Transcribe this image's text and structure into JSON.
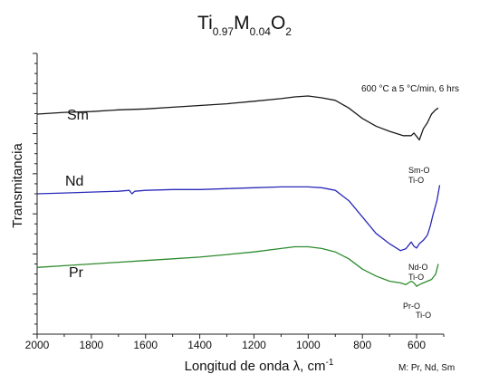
{
  "chart_data": {
    "type": "line",
    "title": {
      "parts": [
        {
          "text": "Ti",
          "sub": "0.97"
        },
        {
          "text": "M",
          "sub": "0.04"
        },
        {
          "text": "O",
          "sub": "2"
        }
      ]
    },
    "xlabel": "Longitud de onda λ, cm",
    "xlabel_sup": "-1",
    "ylabel": "Transmitancia",
    "xlim": [
      2000,
      500
    ],
    "x_reversed": true,
    "x_ticks": [
      2000,
      1800,
      1600,
      1400,
      1200,
      1000,
      800,
      600
    ],
    "y_ticks_unlabeled": true,
    "grid": false,
    "condition_note": "600 °C  a  5 °C/min, 6 hrs",
    "footnote": "M: Pr, Nd, Sm",
    "series": [
      {
        "name": "Sm",
        "color": "#1a1a1a",
        "points": [
          [
            2000,
            40
          ],
          [
            1900,
            38
          ],
          [
            1800,
            37
          ],
          [
            1700,
            35
          ],
          [
            1600,
            34
          ],
          [
            1500,
            32
          ],
          [
            1400,
            30
          ],
          [
            1300,
            28
          ],
          [
            1200,
            25
          ],
          [
            1100,
            22
          ],
          [
            1050,
            20
          ],
          [
            1000,
            19
          ],
          [
            950,
            21
          ],
          [
            900,
            24
          ],
          [
            850,
            33
          ],
          [
            800,
            45
          ],
          [
            750,
            54
          ],
          [
            700,
            60
          ],
          [
            650,
            65
          ],
          [
            620,
            65
          ],
          [
            610,
            62
          ],
          [
            600,
            66
          ],
          [
            590,
            70
          ],
          [
            575,
            57
          ],
          [
            560,
            50
          ],
          [
            545,
            40
          ],
          [
            530,
            35
          ],
          [
            520,
            33
          ]
        ]
      },
      {
        "name": "Nd",
        "color": "#2a2ab8",
        "points": [
          [
            2000,
            60
          ],
          [
            1900,
            59
          ],
          [
            1800,
            58
          ],
          [
            1700,
            57
          ],
          [
            1660,
            56
          ],
          [
            1650,
            60
          ],
          [
            1640,
            57
          ],
          [
            1600,
            56
          ],
          [
            1500,
            55
          ],
          [
            1400,
            55
          ],
          [
            1300,
            54
          ],
          [
            1200,
            53
          ],
          [
            1100,
            52
          ],
          [
            1000,
            52
          ],
          [
            950,
            53
          ],
          [
            900,
            56
          ],
          [
            850,
            68
          ],
          [
            800,
            87
          ],
          [
            750,
            106
          ],
          [
            700,
            118
          ],
          [
            660,
            126
          ],
          [
            640,
            124
          ],
          [
            620,
            116
          ],
          [
            610,
            121
          ],
          [
            600,
            123
          ],
          [
            590,
            118
          ],
          [
            575,
            114
          ],
          [
            560,
            108
          ],
          [
            550,
            98
          ],
          [
            540,
            85
          ],
          [
            525,
            68
          ],
          [
            515,
            50
          ]
        ]
      },
      {
        "name": "Pr",
        "color": "#2e8b2e",
        "points": [
          [
            2000,
            54
          ],
          [
            1900,
            52
          ],
          [
            1800,
            50
          ],
          [
            1700,
            48
          ],
          [
            1600,
            46
          ],
          [
            1500,
            44
          ],
          [
            1400,
            42
          ],
          [
            1300,
            39
          ],
          [
            1200,
            36
          ],
          [
            1100,
            32
          ],
          [
            1050,
            30
          ],
          [
            1000,
            30
          ],
          [
            950,
            32
          ],
          [
            900,
            36
          ],
          [
            850,
            44
          ],
          [
            800,
            56
          ],
          [
            750,
            64
          ],
          [
            700,
            70
          ],
          [
            660,
            72
          ],
          [
            640,
            74
          ],
          [
            620,
            70
          ],
          [
            610,
            72
          ],
          [
            600,
            76
          ],
          [
            590,
            74
          ],
          [
            575,
            72
          ],
          [
            560,
            70
          ],
          [
            545,
            68
          ],
          [
            530,
            62
          ],
          [
            520,
            50
          ]
        ]
      }
    ],
    "annotations": {
      "Sm": [
        "Sm-O",
        "Ti-O"
      ],
      "Nd": [
        "Nd-O",
        "Ti-O"
      ],
      "Pr": [
        "Pr-O",
        "Ti-O"
      ]
    }
  }
}
